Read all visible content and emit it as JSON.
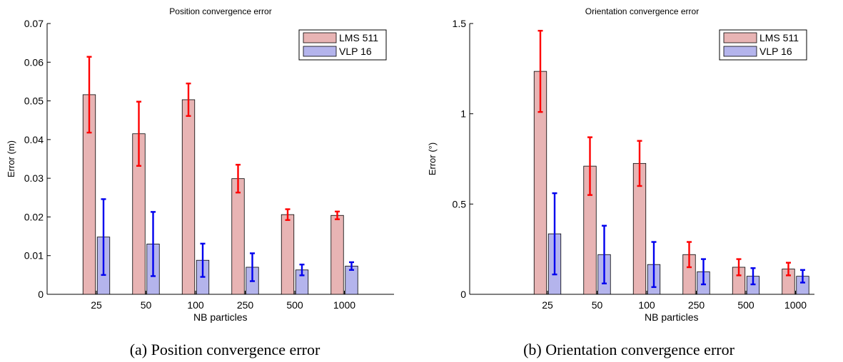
{
  "colors": {
    "series1_fill": "#e8b4b4",
    "series2_fill": "#b4b4ec",
    "series1_error": "#ff0000",
    "series2_error": "#0000ee"
  },
  "captions": [
    {
      "label": "(a)",
      "text": "Position convergence error"
    },
    {
      "label": "(b)",
      "text": "Orientation convergence error"
    }
  ],
  "chart_data": [
    {
      "type": "bar",
      "title": "Position convergence error",
      "xlabel": "NB particles",
      "ylabel": "Error (m)",
      "categories": [
        "25",
        "50",
        "100",
        "250",
        "500",
        "1000"
      ],
      "ylim": [
        0,
        0.07
      ],
      "yticks": [
        0,
        0.01,
        0.02,
        0.03,
        0.04,
        0.05,
        0.06,
        0.07
      ],
      "ytick_labels": [
        "0",
        "0.01",
        "0.02",
        "0.03",
        "0.04",
        "0.05",
        "0.06",
        "0.07"
      ],
      "grid": false,
      "legend_position": "top-right",
      "series": [
        {
          "name": "LMS 511",
          "values": [
            0.0516,
            0.0415,
            0.0503,
            0.0299,
            0.0206,
            0.0204
          ],
          "error": [
            0.0098,
            0.0083,
            0.0042,
            0.0036,
            0.0014,
            0.001
          ]
        },
        {
          "name": "VLP 16",
          "values": [
            0.0148,
            0.013,
            0.0088,
            0.007,
            0.0063,
            0.0073
          ],
          "error": [
            0.0098,
            0.0083,
            0.0043,
            0.0036,
            0.0014,
            0.001
          ]
        }
      ]
    },
    {
      "type": "bar",
      "title": "Orientation convergence error",
      "xlabel": "NB particles",
      "ylabel": "Error (°)",
      "categories": [
        "25",
        "50",
        "100",
        "250",
        "500",
        "1000"
      ],
      "ylim": [
        0,
        1.5
      ],
      "yticks": [
        0,
        0.5,
        1,
        1.5
      ],
      "ytick_labels": [
        "0",
        "0.5",
        "1",
        "1.5"
      ],
      "grid": false,
      "legend_position": "top-right",
      "series": [
        {
          "name": "LMS 511",
          "values": [
            1.235,
            0.71,
            0.725,
            0.22,
            0.15,
            0.14
          ],
          "error": [
            0.225,
            0.16,
            0.125,
            0.07,
            0.045,
            0.035
          ]
        },
        {
          "name": "VLP 16",
          "values": [
            0.335,
            0.22,
            0.165,
            0.125,
            0.1,
            0.1
          ],
          "error": [
            0.225,
            0.16,
            0.125,
            0.07,
            0.045,
            0.035
          ]
        }
      ]
    }
  ]
}
